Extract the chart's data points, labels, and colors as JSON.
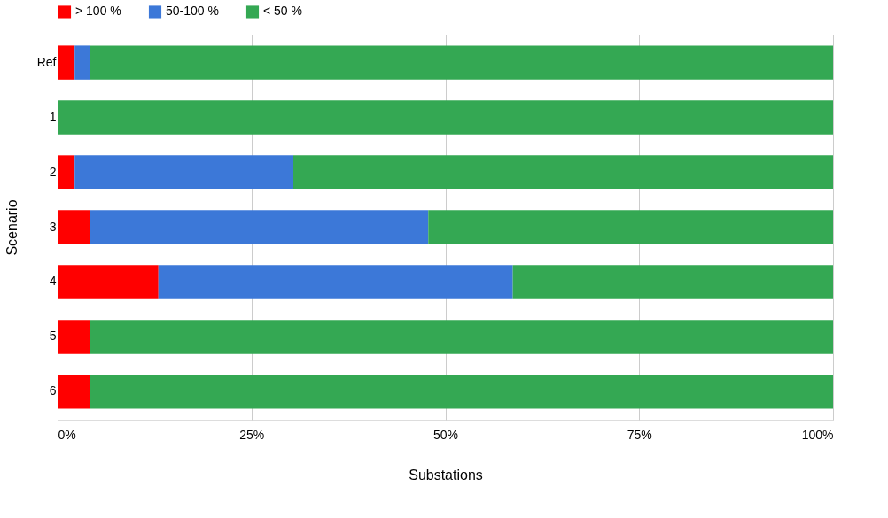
{
  "chart_data": {
    "type": "bar",
    "orientation": "horizontal",
    "stacked": true,
    "xlabel": "Substations",
    "ylabel": "Scenario",
    "categories": [
      "Ref",
      "1",
      "2",
      "3",
      "4",
      "5",
      "6"
    ],
    "series": [
      {
        "name": "> 100 %",
        "color": "#ff0000",
        "values": [
          2.2,
          0,
          2.2,
          4.2,
          13.0,
          4.2,
          4.2
        ]
      },
      {
        "name": "50-100 %",
        "color": "#3c78d8",
        "values": [
          2.0,
          0,
          28.2,
          43.6,
          45.7,
          0,
          0
        ]
      },
      {
        "name": "< 50 %",
        "color": "#34a853",
        "values": [
          95.8,
          100,
          69.6,
          52.2,
          41.3,
          95.8,
          95.8
        ]
      }
    ],
    "xlim": [
      0,
      100
    ],
    "xticks": [
      {
        "value": 0,
        "label": "0%"
      },
      {
        "value": 25,
        "label": "25%"
      },
      {
        "value": 50,
        "label": "50%"
      },
      {
        "value": 75,
        "label": "75%"
      },
      {
        "value": 100,
        "label": "100%"
      }
    ],
    "grid": "x",
    "legend": "top"
  }
}
